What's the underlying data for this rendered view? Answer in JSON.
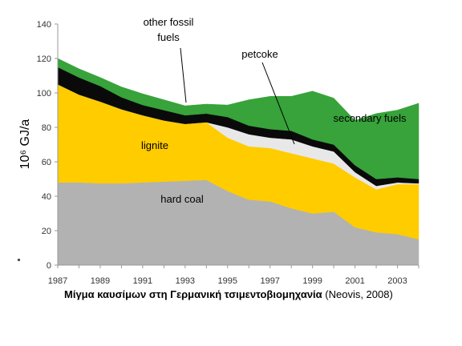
{
  "chart_data": {
    "type": "area",
    "stacked": true,
    "ylabel": "10⁶ GJ/a",
    "ylim": [
      0,
      140
    ],
    "yticks": [
      "0",
      "20",
      "40",
      "60",
      "80",
      "100",
      "120",
      "140"
    ],
    "xlim": [
      1987,
      2004
    ],
    "xticks": [
      "1987",
      "1989",
      "1991",
      "1993",
      "1995",
      "1997",
      "1999",
      "2001",
      "2003"
    ],
    "grid": false,
    "x": [
      1987,
      1988,
      1989,
      1990,
      1991,
      1992,
      1993,
      1994,
      1995,
      1996,
      1997,
      1998,
      1999,
      2000,
      2001,
      2002,
      2003,
      2004
    ],
    "series": [
      {
        "name": "hard coal",
        "color": "#b2b2b2",
        "values": [
          48,
          48,
          47.5,
          47.5,
          48,
          48.5,
          49,
          49.5,
          43,
          38,
          37,
          33,
          30,
          31,
          22,
          19,
          18,
          15
        ]
      },
      {
        "name": "lignite",
        "color": "#ffcc00",
        "values": [
          57,
          51,
          47.5,
          43,
          39,
          35.5,
          33,
          33.5,
          31,
          31,
          31,
          32,
          32,
          28,
          29,
          25,
          29,
          32
        ]
      },
      {
        "name": "petcoke",
        "color": "#e8e8e8",
        "values": [
          0,
          0,
          0,
          0,
          0,
          0,
          0,
          0,
          6,
          7,
          6,
          8,
          7,
          7,
          3,
          2,
          1,
          0.5
        ]
      },
      {
        "name": "other fossil fuels",
        "color": "#0a0a0a",
        "values": [
          10,
          10,
          9,
          7,
          6,
          6,
          5,
          5,
          6,
          5,
          5,
          5,
          4,
          4,
          4,
          4,
          3,
          2.5
        ]
      },
      {
        "name": "secondary fuels",
        "color": "#37a33a",
        "values": [
          5,
          5,
          5,
          6,
          6.5,
          6,
          5.5,
          5.5,
          7,
          15,
          19,
          20,
          28,
          27,
          26,
          38,
          39,
          44
        ]
      }
    ],
    "annotations": [
      {
        "text": "other fossil",
        "series": "other fossil fuels"
      },
      {
        "text": "fuels",
        "series": "other fossil fuels"
      },
      {
        "text": "petcoke",
        "series": "petcoke"
      },
      {
        "text": "secondary fuels",
        "series": "secondary fuels"
      },
      {
        "text": "lignite",
        "series": "lignite"
      },
      {
        "text": "hard coal",
        "series": "hard coal"
      }
    ]
  },
  "caption": {
    "bold": "Μίγμα καυσίμων στη Γερμανική τσιμεντοβιομηχανία",
    "source": " (Neovis, 2008)"
  }
}
